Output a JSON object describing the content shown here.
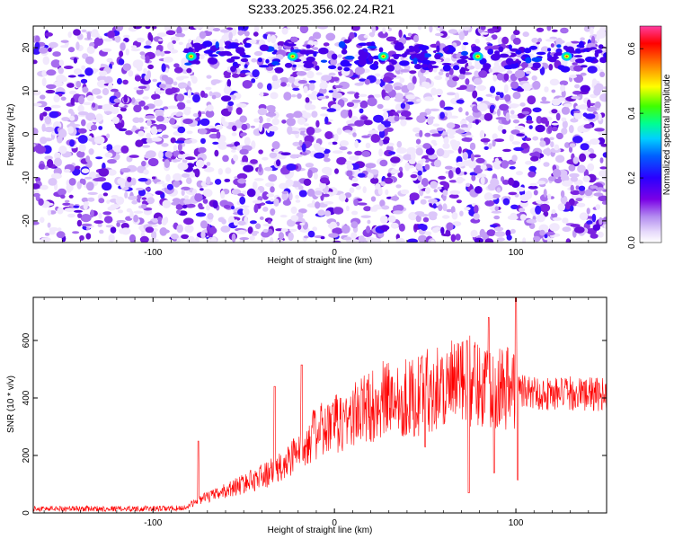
{
  "title": "S233.2025.356.02.24.R21",
  "chart_data": [
    {
      "type": "heatmap",
      "xlabel": "Height of straight line (km)",
      "ylabel": "Frequency (Hz)",
      "xlim": [
        -166,
        150
      ],
      "ylim": [
        -25,
        25
      ],
      "x_ticks": [
        -100,
        0,
        100
      ],
      "y_ticks": [
        -20,
        -10,
        0,
        10,
        20
      ],
      "colorbar": {
        "label": "Normalized spectral amplitude",
        "range": [
          0,
          0.67
        ],
        "ticks": [
          0.0,
          0.2,
          0.4,
          0.6
        ],
        "colors": [
          "#ffffff",
          "#c9a8f0",
          "#8a2be2",
          "#5b00d6",
          "#0000ff",
          "#00c8ff",
          "#00ff80",
          "#40ff00",
          "#ffff00",
          "#ff8000",
          "#ff0000",
          "#ff3da0"
        ]
      },
      "features": [
        {
          "label": "strong band",
          "freq_hz": 18,
          "x_range": [
            -82,
            150
          ]
        },
        {
          "hotspot_x": [
            -79,
            -23,
            27,
            79,
            128
          ],
          "freq_hz": 18
        }
      ]
    },
    {
      "type": "line",
      "xlabel": "Height of straight line (km)",
      "ylabel": "SNR (10 * v/v)",
      "xlim": [
        -166,
        150
      ],
      "ylim": [
        0,
        750
      ],
      "x_ticks": [
        -100,
        0,
        100
      ],
      "y_ticks": [
        0,
        200,
        400,
        600
      ],
      "series_color": "#ff0000",
      "envelope": {
        "x": [
          -166,
          -140,
          -110,
          -90,
          -82,
          -75,
          -65,
          -55,
          -45,
          -35,
          -28,
          -22,
          -15,
          -5,
          5,
          15,
          25,
          35,
          45,
          50,
          55,
          65,
          75,
          85,
          95,
          101,
          108,
          115,
          125,
          135,
          150
        ],
        "y": [
          15,
          15,
          15,
          15,
          18,
          45,
          65,
          90,
          115,
          140,
          160,
          210,
          260,
          290,
          320,
          355,
          390,
          405,
          400,
          420,
          440,
          445,
          460,
          450,
          440,
          430,
          420,
          415,
          415,
          415,
          410
        ]
      },
      "peaks": [
        {
          "x": -75,
          "y": 250
        },
        {
          "x": -33,
          "y": 440
        },
        {
          "x": -18,
          "y": 515
        },
        {
          "x": 48,
          "y": 540
        },
        {
          "x": 73,
          "y": 600
        },
        {
          "x": 85,
          "y": 680
        },
        {
          "x": 100,
          "y": 750
        }
      ],
      "dips": [
        {
          "x": 50,
          "y": 230
        },
        {
          "x": 74,
          "y": 70
        },
        {
          "x": 88,
          "y": 140
        },
        {
          "x": 101,
          "y": 115
        }
      ]
    }
  ]
}
